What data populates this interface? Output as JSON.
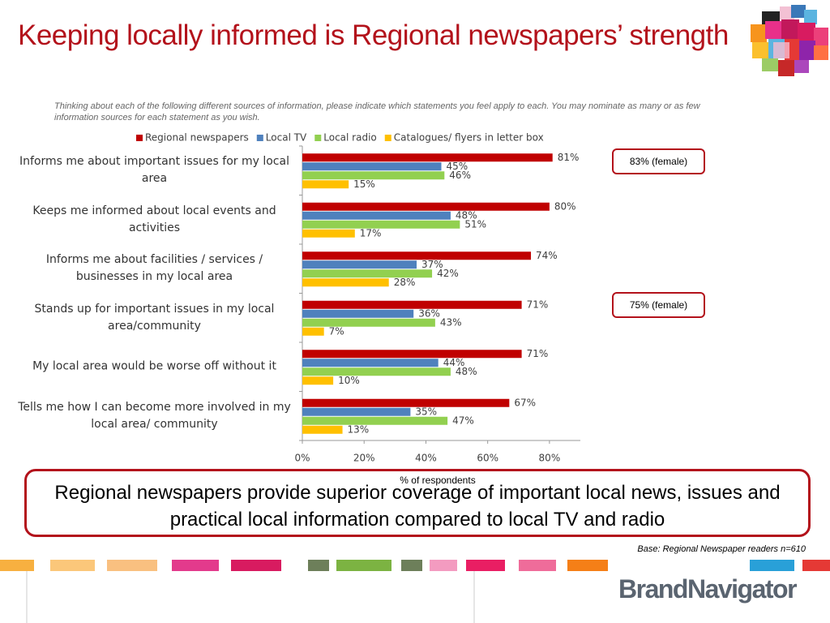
{
  "chart_data": {
    "type": "bar",
    "orientation": "horizontal",
    "title": "Keeping locally informed is Regional newspapers’ strength",
    "subtitle": "Thinking about each of the following different sources of information, please indicate which statements you feel apply to each.  You may nominate as many or as few information sources for each statement as you wish.",
    "categories": [
      "Informs me about important issues for my local area",
      "Keeps me informed about local events and activities",
      "Informs me about facilities / services / businesses in my local area",
      "Stands up for important issues in my local area/community",
      "My local area would be worse off without it",
      "Tells me how I can become more involved in my local area/ community"
    ],
    "series": [
      {
        "name": "Regional newspapers",
        "color": "#c00000",
        "values": [
          81,
          80,
          74,
          71,
          71,
          67
        ],
        "value_labels": [
          "81%",
          "80%",
          "74%",
          "71%",
          "71%",
          "67%"
        ]
      },
      {
        "name": "Local TV",
        "color": "#4f81bd",
        "values": [
          45,
          48,
          37,
          36,
          44,
          35
        ],
        "value_labels": [
          "45%",
          "48%",
          "37%",
          "36%",
          "44%",
          "35%"
        ]
      },
      {
        "name": "Local radio",
        "color": "#92d050",
        "values": [
          46,
          51,
          42,
          43,
          48,
          47
        ],
        "value_labels": [
          "46%",
          "51%",
          "42%",
          "43%",
          "48%",
          "47%"
        ]
      },
      {
        "name": "Catalogues/ flyers in letter box",
        "color": "#ffc000",
        "values": [
          15,
          17,
          28,
          7,
          10,
          13
        ],
        "value_labels": [
          "15%",
          "17%",
          "28%",
          "7%",
          "10%",
          "13%"
        ]
      }
    ],
    "xlim": [
      0,
      90
    ],
    "xticks": [
      {
        "value": 0,
        "label": "0%"
      },
      {
        "value": 20,
        "label": "20%"
      },
      {
        "value": 40,
        "label": "40%"
      },
      {
        "value": 60,
        "label": "60%"
      },
      {
        "value": 80,
        "label": "80%"
      }
    ],
    "x_label": "% of respondents",
    "legend": "top",
    "callouts": [
      "83% (female)",
      "75% (female)"
    ],
    "conclusion": "Regional newspapers provide superior coverage of important local news, issues and practical local information compared to local TV and radio",
    "note": "Base: Regional Newspaper readers n=610"
  },
  "logo": "BrandNavigator"
}
